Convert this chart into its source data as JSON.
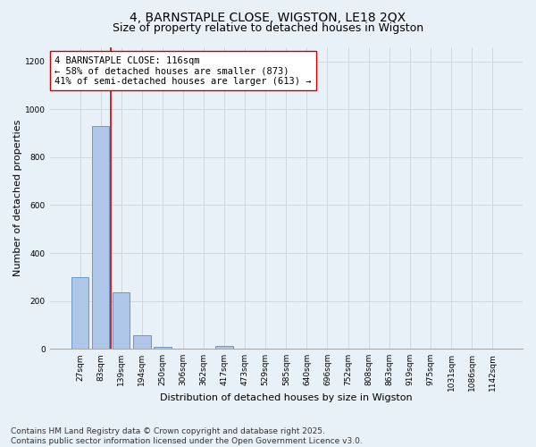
{
  "title_line1": "4, BARNSTAPLE CLOSE, WIGSTON, LE18 2QX",
  "title_line2": "Size of property relative to detached houses in Wigston",
  "xlabel": "Distribution of detached houses by size in Wigston",
  "ylabel": "Number of detached properties",
  "bin_labels": [
    "27sqm",
    "83sqm",
    "139sqm",
    "194sqm",
    "250sqm",
    "306sqm",
    "362sqm",
    "417sqm",
    "473sqm",
    "529sqm",
    "585sqm",
    "640sqm",
    "696sqm",
    "752sqm",
    "808sqm",
    "863sqm",
    "919sqm",
    "975sqm",
    "1031sqm",
    "1086sqm",
    "1142sqm"
  ],
  "bar_values": [
    300,
    930,
    235,
    55,
    10,
    0,
    0,
    13,
    0,
    0,
    0,
    0,
    0,
    0,
    0,
    0,
    0,
    0,
    0,
    0,
    0
  ],
  "bar_color": "#aec6e8",
  "bar_edge_color": "#5a8fc2",
  "vline_x_idx": 1.5,
  "vline_color": "#cc0000",
  "annotation_text": "4 BARNSTAPLE CLOSE: 116sqm\n← 58% of detached houses are smaller (873)\n41% of semi-detached houses are larger (613) →",
  "annotation_box_color": "#ffffff",
  "annotation_box_edge": "#cc0000",
  "ylim": [
    0,
    1260
  ],
  "yticks": [
    0,
    200,
    400,
    600,
    800,
    1000,
    1200
  ],
  "grid_color": "#d0d8e0",
  "background_color": "#e8f0f8",
  "footnote": "Contains HM Land Registry data © Crown copyright and database right 2025.\nContains public sector information licensed under the Open Government Licence v3.0.",
  "title_fontsize": 10,
  "subtitle_fontsize": 9,
  "axis_label_fontsize": 8,
  "tick_fontsize": 6.5,
  "annotation_fontsize": 7.5,
  "footnote_fontsize": 6.5
}
